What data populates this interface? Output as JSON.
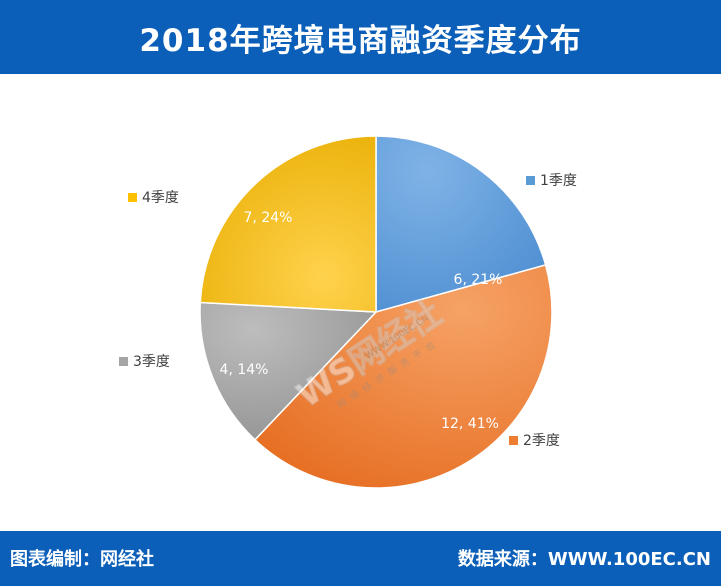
{
  "title": "2018年跨境电商融资季度分布",
  "footer": {
    "left": "图表编制：网经社",
    "right": "数据来源：WWW.100EC.CN"
  },
  "watermark": {
    "logo": "WS网经社",
    "url": "WWW.100EC.CN",
    "tagline": "网络经济服务平台"
  },
  "chart_data": {
    "type": "pie",
    "title": "2018年跨境电商融资季度分布",
    "categories": [
      "1季度",
      "2季度",
      "3季度",
      "4季度"
    ],
    "values": [
      6,
      12,
      4,
      7
    ],
    "percent_labels": [
      "21%",
      "41%",
      "14%",
      "24%"
    ],
    "data_labels": [
      "6, 21%",
      "12, 41%",
      "4, 14%",
      "7, 24%"
    ],
    "colors": [
      "#5b9bd5",
      "#ed7d31",
      "#a5a5a5",
      "#ffc000"
    ],
    "legend_placement": "beside slices"
  }
}
